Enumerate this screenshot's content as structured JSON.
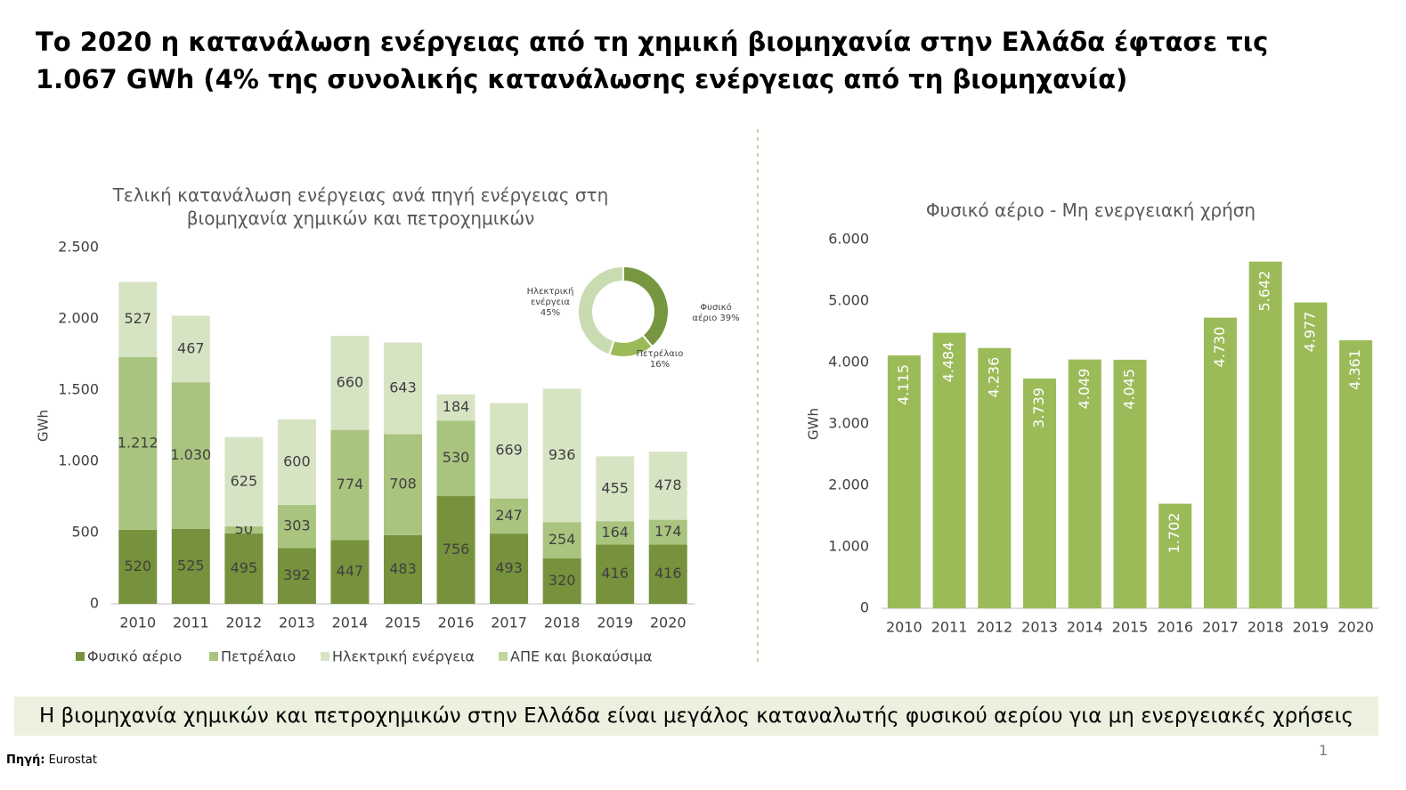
{
  "title": "Το 2020 η κατανάλωση ενέργειας από τη χημική βιομηχανία στην Ελλάδα έφτασε τις 1.067 GWh (4% της συνολικής κατανάλωσης ενέργειας από τη βιομηχανία)",
  "chart_data": [
    {
      "type": "stacked_bar",
      "title": "Τελική κατανάλωση ενέργειας ανά πηγή ενέργειας στη βιομηχανία χημικών και πετροχημικών",
      "y_label": "GWh",
      "categories": [
        "2010",
        "2011",
        "2012",
        "2013",
        "2014",
        "2015",
        "2016",
        "2017",
        "2018",
        "2019",
        "2020"
      ],
      "series": [
        {
          "name": "Φυσικό αέριο",
          "color": "#76923c",
          "values": [
            520,
            525,
            495,
            392,
            447,
            483,
            756,
            493,
            320,
            416,
            416
          ]
        },
        {
          "name": "Πετρέλαιο",
          "color": "#a9c47f",
          "values": [
            1212,
            1030,
            50,
            303,
            774,
            708,
            530,
            247,
            254,
            164,
            174
          ],
          "value_labels": [
            "1.212",
            "1.030",
            "50",
            "303",
            "774",
            "708",
            "530",
            "247",
            "254",
            "164",
            "174"
          ]
        },
        {
          "name": "Ηλεκτρική ενέργεια",
          "color": "#d7e4c4",
          "values": [
            527,
            467,
            625,
            600,
            660,
            643,
            184,
            669,
            936,
            455,
            478
          ]
        },
        {
          "name": "ΑΠΕ και βιοκαύσιμα",
          "color": "#c3d69b",
          "values": [
            0,
            0,
            0,
            0,
            0,
            0,
            0,
            0,
            0,
            0,
            0
          ]
        }
      ],
      "ylim": [
        0,
        2500
      ],
      "yticks": [
        0,
        500,
        {
          "value": 1000,
          "label": "1.000"
        },
        {
          "value": 1500,
          "label": "1.500"
        },
        {
          "value": 2000,
          "label": "2.000"
        },
        {
          "value": 2500,
          "label": "2.500"
        }
      ],
      "grid": false,
      "legend": "bottom"
    },
    {
      "type": "donut",
      "categories": [
        "Φυσικό αέριο",
        "Πετρέλαιο",
        "Ηλεκτρική ενέργεια"
      ],
      "values": [
        39,
        16,
        45
      ],
      "value_labels": [
        "39%",
        "16%",
        "45%"
      ],
      "colors": [
        "#76973f",
        "#9bbb59",
        "#c9dbb0"
      ]
    },
    {
      "type": "bar",
      "title": "Φυσικό αέριο - Μη ενεργειακή χρήση",
      "y_label": "GWh",
      "categories": [
        "2010",
        "2011",
        "2012",
        "2013",
        "2014",
        "2015",
        "2016",
        "2017",
        "2018",
        "2019",
        "2020"
      ],
      "values": [
        4115,
        4484,
        4236,
        3739,
        4049,
        4045,
        1702,
        4730,
        5642,
        4977,
        4361
      ],
      "value_labels": [
        "4.115",
        "4.484",
        "4.236",
        "3.739",
        "4.049",
        "4.045",
        "1.702",
        "4.730",
        "5.642",
        "4.977",
        "4.361"
      ],
      "color": "#9bbb59",
      "ylim": [
        0,
        6000
      ],
      "yticks": [
        0,
        {
          "value": 1000,
          "label": "1.000"
        },
        {
          "value": 2000,
          "label": "2.000"
        },
        {
          "value": 3000,
          "label": "3.000"
        },
        {
          "value": 4000,
          "label": "4.000"
        },
        {
          "value": 5000,
          "label": "5.000"
        },
        {
          "value": 6000,
          "label": "6.000"
        }
      ],
      "grid": false
    }
  ],
  "banner": "Η βιομηχανία χημικών και πετροχημικών στην Ελλάδα είναι μεγάλος καταναλωτής φυσικού αερίου για μη ενεργειακές χρήσεις",
  "source_label": "Πηγή:",
  "source": "Eurostat",
  "page_number": "1"
}
